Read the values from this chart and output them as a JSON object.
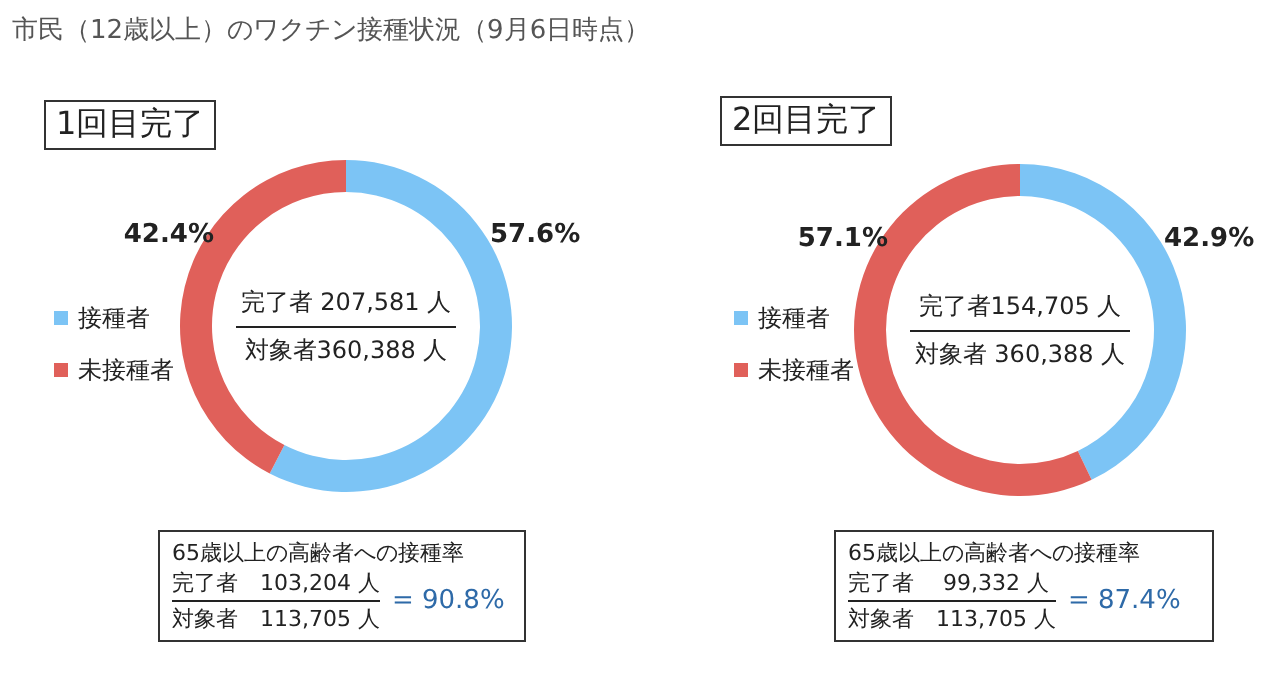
{
  "chart_data": [
    {
      "type": "donut",
      "title": "市民（12歳以上）のワクチン接種状況（9月6日時点）",
      "subtitle": "1回目完了",
      "categories": [
        "接種者",
        "未接種者"
      ],
      "values": [
        57.6,
        42.4
      ],
      "value_labels": [
        "57.6%",
        "42.4%"
      ],
      "colors": [
        "#7cc4f5",
        "#e0605a"
      ],
      "legend": "left",
      "annotations": [
        "完了者 207,581 人",
        "対象者360,388 人",
        "65歳以上の高齢者への接種率",
        "完了者　103,204 人",
        "対象者　113,705 人",
        "= 90.8%"
      ]
    },
    {
      "type": "donut",
      "subtitle": "2回目完了",
      "categories": [
        "接種者",
        "未接種者"
      ],
      "values": [
        42.9,
        57.1
      ],
      "value_labels": [
        "42.9%",
        "57.1%"
      ],
      "colors": [
        "#7cc4f5",
        "#e0605a"
      ],
      "legend": "left",
      "annotations": [
        "完了者154,705 人",
        "対象者 360,388 人",
        "65歳以上の高齢者への接種率",
        "完了者　 99,332 人",
        "対象者　113,705 人",
        "= 87.4%"
      ]
    }
  ]
}
